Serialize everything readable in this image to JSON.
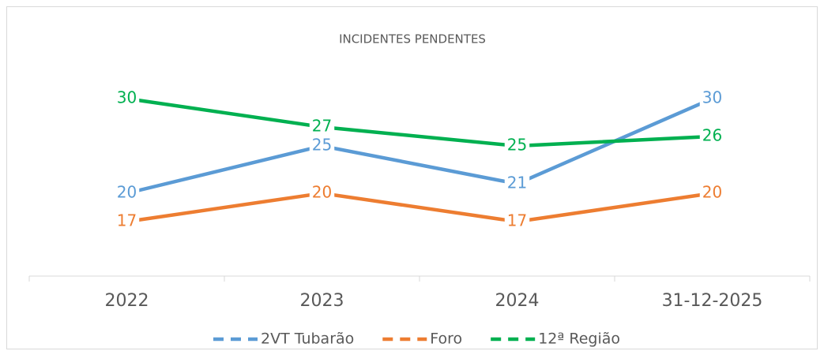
{
  "chart_data": {
    "type": "line",
    "title": "INCIDENTES PENDENTES",
    "categories": [
      "2022",
      "2023",
      "2024",
      "31-12-2025"
    ],
    "series": [
      {
        "name": "2VT Tubarão",
        "color": "#5b9bd5",
        "values": [
          20,
          25,
          21,
          30
        ]
      },
      {
        "name": "Foro",
        "color": "#ed7d31",
        "values": [
          17,
          20,
          17,
          20
        ]
      },
      {
        "name": "12ª Região",
        "color": "#00b050",
        "values": [
          30,
          27,
          25,
          26
        ]
      }
    ],
    "ylim": [
      11,
      32
    ],
    "legend": "bottom"
  }
}
